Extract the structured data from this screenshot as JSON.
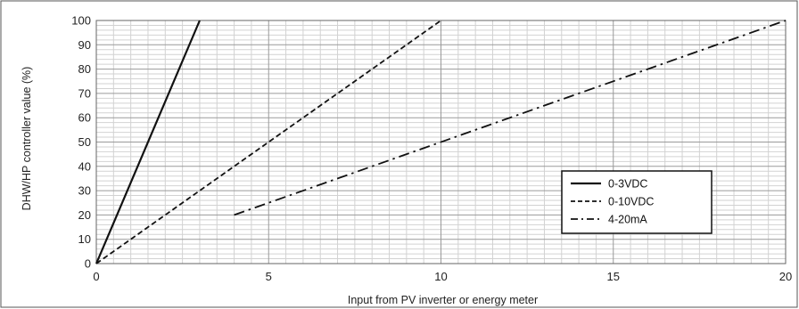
{
  "chart_data": {
    "type": "line",
    "title": "",
    "xlabel": "Input from PV inverter or energy meter",
    "ylabel": "DHW/HP controller value  (%)",
    "xlim": [
      0,
      20
    ],
    "ylim": [
      0,
      100
    ],
    "x_ticks": [
      "0",
      "5",
      "10",
      "15",
      "20"
    ],
    "y_ticks": [
      "0",
      "10",
      "20",
      "30",
      "40",
      "50",
      "60",
      "70",
      "80",
      "90",
      "100"
    ],
    "grid": true,
    "legend_position": "bottom-right",
    "series": [
      {
        "name": "0-3VDC",
        "style": "solid",
        "x": [
          0,
          3
        ],
        "y": [
          0,
          100
        ]
      },
      {
        "name": "0-10VDC",
        "style": "dashed",
        "x": [
          0,
          10
        ],
        "y": [
          0,
          100
        ]
      },
      {
        "name": "4-20mA",
        "style": "dash-dot",
        "x": [
          4,
          20
        ],
        "y": [
          20,
          100
        ]
      }
    ]
  }
}
